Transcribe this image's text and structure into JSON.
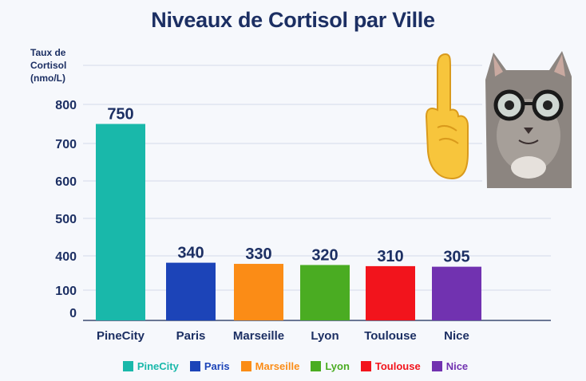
{
  "chart_data": {
    "type": "bar",
    "title": "Niveaux de Cortisol par Ville",
    "ylabel": [
      "Taux de",
      "Cortisol",
      "(nmo/L)"
    ],
    "xlabel": "",
    "categories": [
      "PineCity",
      "Paris",
      "Marseille",
      "Lyon",
      "Toulouse",
      "Nice"
    ],
    "values": [
      750,
      340,
      330,
      320,
      310,
      305
    ],
    "colors": [
      "#19b8aa",
      "#1c44b8",
      "#fb8c16",
      "#4aac22",
      "#f2141c",
      "#7132b0"
    ],
    "y_ticks": [
      {
        "label": "800",
        "value": 800
      },
      {
        "label": "700",
        "value": 700
      },
      {
        "label": "600",
        "value": 600
      },
      {
        "label": "500",
        "value": 500
      },
      {
        "label": "400",
        "value": 400
      },
      {
        "label": "100",
        "value": 100
      },
      {
        "label": "0",
        "value": 0
      }
    ],
    "grid": true,
    "legend": {
      "position": "bottom",
      "entries": [
        "PineCity",
        "Paris",
        "Marseille",
        "Lyon",
        "Toulouse",
        "Nice"
      ]
    }
  },
  "stickers": {
    "hand_icon": "pointing-up-finger-emoji",
    "cat_icon": "cat-with-glasses-meme"
  }
}
